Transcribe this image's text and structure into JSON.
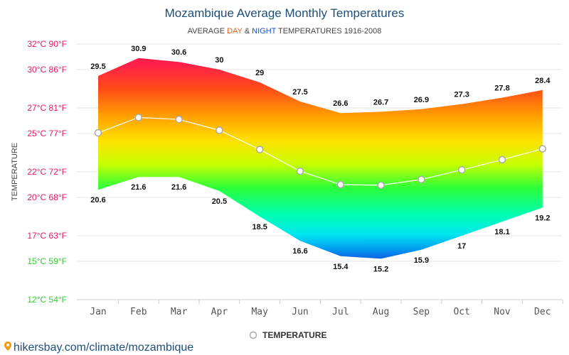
{
  "chart_data": {
    "type": "area",
    "title": "Mozambique Average Monthly Temperatures",
    "subtitle": {
      "prefix": "AVERAGE ",
      "day": "DAY",
      "amp": " & ",
      "night": "NIGHT",
      "suffix": " TEMPERATURES 1916-2008"
    },
    "ylabel": "TEMPERATURE",
    "categories": [
      "Jan",
      "Feb",
      "Mar",
      "Apr",
      "May",
      "Jun",
      "Jul",
      "Aug",
      "Sep",
      "Oct",
      "Nov",
      "Dec"
    ],
    "series": [
      {
        "role": "day",
        "values": [
          29.5,
          30.9,
          30.6,
          30,
          29,
          27.5,
          26.6,
          26.7,
          26.9,
          27.3,
          27.8,
          28.4
        ]
      },
      {
        "role": "night",
        "values": [
          20.6,
          21.6,
          21.6,
          20.5,
          18.5,
          16.6,
          15.4,
          15.2,
          15.9,
          17,
          18.1,
          19.2
        ]
      },
      {
        "name": "TEMPERATURE",
        "values": [
          25.05,
          26.25,
          26.1,
          25.25,
          23.75,
          22.05,
          21.0,
          20.95,
          21.4,
          22.15,
          22.95,
          23.8
        ]
      }
    ],
    "y_ticks": [
      {
        "value": 12,
        "label": "12°C 54°F",
        "color": "#33cc33"
      },
      {
        "value": 15,
        "label": "15°C 59°F",
        "color": "#33cc33"
      },
      {
        "value": 17,
        "label": "17°C 63°F",
        "color": "#e8175d"
      },
      {
        "value": 20,
        "label": "20°C 68°F",
        "color": "#e8175d"
      },
      {
        "value": 22,
        "label": "22°C 72°F",
        "color": "#e8175d"
      },
      {
        "value": 25,
        "label": "25°C 77°F",
        "color": "#e8175d"
      },
      {
        "value": 27,
        "label": "27°C 81°F",
        "color": "#e8175d"
      },
      {
        "value": 30,
        "label": "30°C 86°F",
        "color": "#e8175d"
      },
      {
        "value": 32,
        "label": "32°C 90°F",
        "color": "#e8175d"
      }
    ],
    "ylim": [
      12,
      32
    ],
    "grid": true,
    "legend": {
      "position": "bottom",
      "label": "TEMPERATURE"
    }
  },
  "footer": {
    "site": "hikersbay.com/climate/mozambique"
  },
  "colors": {
    "title": "#1f4e79",
    "day": "#e8601c",
    "night": "#1a4ed1",
    "line": "#ffffff"
  }
}
